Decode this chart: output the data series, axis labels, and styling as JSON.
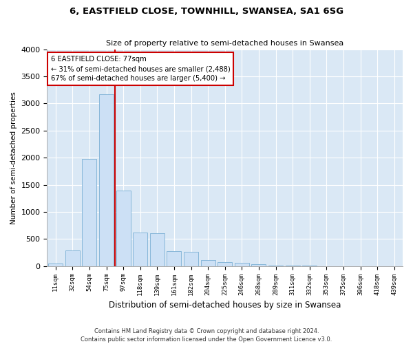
{
  "title": "6, EASTFIELD CLOSE, TOWNHILL, SWANSEA, SA1 6SG",
  "subtitle": "Size of property relative to semi-detached houses in Swansea",
  "xlabel": "Distribution of semi-detached houses by size in Swansea",
  "ylabel": "Number of semi-detached properties",
  "footer_line1": "Contains HM Land Registry data © Crown copyright and database right 2024.",
  "footer_line2": "Contains public sector information licensed under the Open Government Licence v3.0.",
  "annotation_title": "6 EASTFIELD CLOSE: 77sqm",
  "annotation_line1": "← 31% of semi-detached houses are smaller (2,488)",
  "annotation_line2": "67% of semi-detached houses are larger (5,400) →",
  "bar_color": "#cce0f5",
  "bar_edge_color": "#7aafd4",
  "redline_color": "#cc0000",
  "annotation_box_color": "#ffffff",
  "annotation_box_edge": "#cc0000",
  "background_color": "#ffffff",
  "plot_bg_color": "#dae8f5",
  "grid_color": "#ffffff",
  "categories": [
    "11sqm",
    "32sqm",
    "54sqm",
    "75sqm",
    "97sqm",
    "118sqm",
    "139sqm",
    "161sqm",
    "182sqm",
    "204sqm",
    "225sqm",
    "246sqm",
    "268sqm",
    "289sqm",
    "311sqm",
    "332sqm",
    "353sqm",
    "375sqm",
    "396sqm",
    "418sqm",
    "439sqm"
  ],
  "values": [
    50,
    290,
    1970,
    3170,
    1390,
    620,
    610,
    270,
    265,
    110,
    70,
    55,
    40,
    10,
    5,
    3,
    2,
    2,
    1,
    1,
    1
  ],
  "redline_bin_index": 3,
  "ylim": [
    0,
    4000
  ],
  "yticks": [
    0,
    500,
    1000,
    1500,
    2000,
    2500,
    3000,
    3500,
    4000
  ]
}
